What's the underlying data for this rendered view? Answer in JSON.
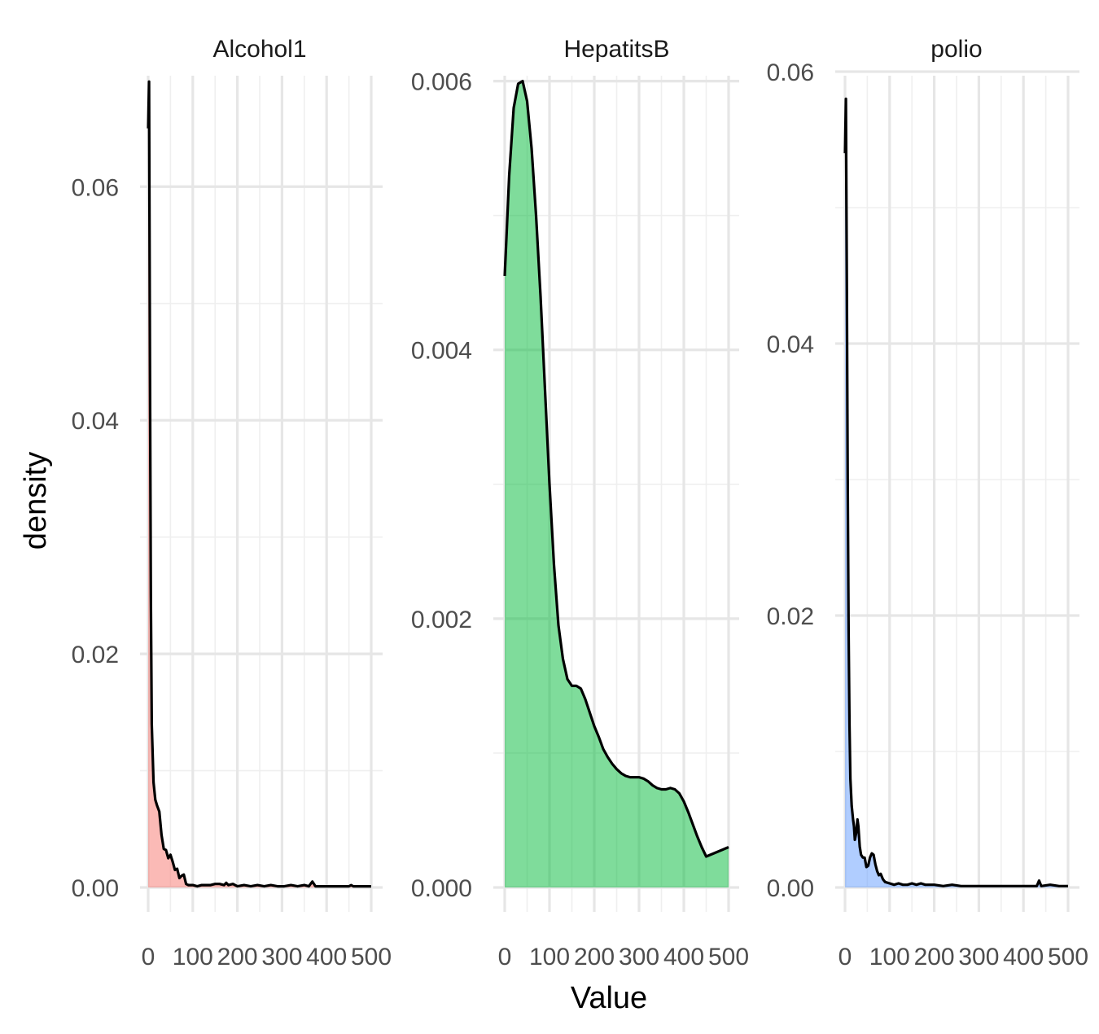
{
  "chart_data": {
    "type": "area",
    "xlabel": "Value",
    "ylabel": "density",
    "grid": true,
    "legend": "none",
    "panels": [
      {
        "name": "Alcohol1",
        "color": "#F8766D",
        "xlim": [
          0,
          500
        ],
        "ylim": [
          0,
          0.0695
        ],
        "x_ticks": [
          0,
          100,
          200,
          300,
          400,
          500
        ],
        "x_tick_labels": [
          "0",
          "100",
          "200",
          "300",
          "400",
          "500"
        ],
        "y_ticks": [
          0,
          0.02,
          0.04,
          0.06
        ],
        "y_tick_labels": [
          "0.00",
          "0.02",
          "0.04",
          "0.06"
        ],
        "points": [
          [
            0,
            0.065
          ],
          [
            2,
            0.069
          ],
          [
            4,
            0.045
          ],
          [
            6,
            0.025
          ],
          [
            8,
            0.014
          ],
          [
            12,
            0.009
          ],
          [
            16,
            0.0075
          ],
          [
            20,
            0.007
          ],
          [
            25,
            0.0065
          ],
          [
            30,
            0.0045
          ],
          [
            35,
            0.0033
          ],
          [
            40,
            0.0032
          ],
          [
            45,
            0.0025
          ],
          [
            50,
            0.0028
          ],
          [
            55,
            0.0022
          ],
          [
            60,
            0.0015
          ],
          [
            65,
            0.0016
          ],
          [
            70,
            0.0008
          ],
          [
            75,
            0.001
          ],
          [
            80,
            0.0011
          ],
          [
            85,
            0.0003
          ],
          [
            90,
            0.0002
          ],
          [
            100,
            0.0002
          ],
          [
            110,
            0.0001
          ],
          [
            120,
            0.0002
          ],
          [
            130,
            0.0002
          ],
          [
            140,
            0.0002
          ],
          [
            150,
            0.0003
          ],
          [
            160,
            0.0003
          ],
          [
            170,
            0.0002
          ],
          [
            175,
            0.0004
          ],
          [
            180,
            0.0002
          ],
          [
            190,
            0.0003
          ],
          [
            200,
            0.0001
          ],
          [
            215,
            0.0002
          ],
          [
            230,
            0.0001
          ],
          [
            245,
            0.0002
          ],
          [
            260,
            0.0001
          ],
          [
            275,
            0.0002
          ],
          [
            290,
            0.0001
          ],
          [
            305,
            0.0001
          ],
          [
            320,
            0.0002
          ],
          [
            335,
            0.0001
          ],
          [
            350,
            0.0002
          ],
          [
            360,
            0.0001
          ],
          [
            368,
            0.0005
          ],
          [
            375,
            0.0001
          ],
          [
            390,
            0.0001
          ],
          [
            410,
            0.0001
          ],
          [
            430,
            0.0001
          ],
          [
            450,
            0.0001
          ],
          [
            455,
            0.0002
          ],
          [
            460,
            0.0001
          ],
          [
            500,
            0.0001
          ]
        ]
      },
      {
        "name": "HepatitsB",
        "color": "#00BA38",
        "xlim": [
          0,
          500
        ],
        "ylim": [
          0,
          0.00604
        ],
        "x_ticks": [
          0,
          100,
          200,
          300,
          400,
          500
        ],
        "x_tick_labels": [
          "0",
          "100",
          "200",
          "300",
          "400",
          "500"
        ],
        "y_ticks": [
          0,
          0.002,
          0.004,
          0.006
        ],
        "y_tick_labels": [
          "0.000",
          "0.002",
          "0.004",
          "0.006"
        ],
        "points": [
          [
            0,
            0.00455
          ],
          [
            10,
            0.0053
          ],
          [
            20,
            0.0058
          ],
          [
            30,
            0.00598
          ],
          [
            40,
            0.006
          ],
          [
            50,
            0.00585
          ],
          [
            60,
            0.0055
          ],
          [
            70,
            0.005
          ],
          [
            80,
            0.0044
          ],
          [
            90,
            0.0037
          ],
          [
            100,
            0.003
          ],
          [
            110,
            0.0024
          ],
          [
            120,
            0.00195
          ],
          [
            130,
            0.0017
          ],
          [
            140,
            0.00155
          ],
          [
            150,
            0.0015
          ],
          [
            160,
            0.0015
          ],
          [
            170,
            0.00148
          ],
          [
            180,
            0.0014
          ],
          [
            190,
            0.0013
          ],
          [
            200,
            0.0012
          ],
          [
            210,
            0.00112
          ],
          [
            220,
            0.00103
          ],
          [
            230,
            0.00097
          ],
          [
            240,
            0.00092
          ],
          [
            250,
            0.00088
          ],
          [
            260,
            0.00085
          ],
          [
            270,
            0.00083
          ],
          [
            280,
            0.00082
          ],
          [
            290,
            0.00082
          ],
          [
            300,
            0.00082
          ],
          [
            310,
            0.00081
          ],
          [
            320,
            0.00079
          ],
          [
            330,
            0.00076
          ],
          [
            340,
            0.00074
          ],
          [
            350,
            0.00073
          ],
          [
            360,
            0.00073
          ],
          [
            370,
            0.00074
          ],
          [
            380,
            0.00073
          ],
          [
            390,
            0.0007
          ],
          [
            400,
            0.00064
          ],
          [
            410,
            0.00056
          ],
          [
            420,
            0.00047
          ],
          [
            430,
            0.00038
          ],
          [
            440,
            0.0003
          ],
          [
            450,
            0.00023
          ],
          [
            500,
            0.0003
          ]
        ]
      },
      {
        "name": "polio",
        "color": "#619CFF",
        "xlim": [
          0,
          500
        ],
        "ylim": [
          0,
          0.0597
        ],
        "x_ticks": [
          0,
          100,
          200,
          300,
          400,
          500
        ],
        "x_tick_labels": [
          "0",
          "100",
          "200",
          "300",
          "400",
          "500"
        ],
        "y_ticks": [
          0,
          0.02,
          0.04,
          0.06
        ],
        "y_tick_labels": [
          "0.00",
          "0.02",
          "0.04",
          "0.06"
        ],
        "points": [
          [
            0,
            0.054
          ],
          [
            2,
            0.058
          ],
          [
            4,
            0.045
          ],
          [
            6,
            0.03
          ],
          [
            8,
            0.019
          ],
          [
            10,
            0.012
          ],
          [
            12,
            0.008
          ],
          [
            15,
            0.006
          ],
          [
            18,
            0.005
          ],
          [
            20,
            0.0045
          ],
          [
            22,
            0.0035
          ],
          [
            25,
            0.004
          ],
          [
            28,
            0.005
          ],
          [
            30,
            0.0045
          ],
          [
            33,
            0.003
          ],
          [
            36,
            0.0024
          ],
          [
            40,
            0.0022
          ],
          [
            44,
            0.0022
          ],
          [
            48,
            0.0015
          ],
          [
            52,
            0.0016
          ],
          [
            56,
            0.0022
          ],
          [
            60,
            0.0025
          ],
          [
            64,
            0.0024
          ],
          [
            68,
            0.0017
          ],
          [
            72,
            0.0012
          ],
          [
            76,
            0.0009
          ],
          [
            80,
            0.001
          ],
          [
            85,
            0.0006
          ],
          [
            90,
            0.0004
          ],
          [
            100,
            0.0003
          ],
          [
            110,
            0.0002
          ],
          [
            120,
            0.0003
          ],
          [
            130,
            0.0002
          ],
          [
            140,
            0.0002
          ],
          [
            150,
            0.0003
          ],
          [
            160,
            0.0002
          ],
          [
            170,
            0.0003
          ],
          [
            180,
            0.0002
          ],
          [
            200,
            0.0002
          ],
          [
            220,
            0.0001
          ],
          [
            240,
            0.0002
          ],
          [
            260,
            0.0001
          ],
          [
            280,
            0.0001
          ],
          [
            300,
            0.0001
          ],
          [
            320,
            0.0001
          ],
          [
            340,
            0.0001
          ],
          [
            360,
            0.0001
          ],
          [
            380,
            0.0001
          ],
          [
            400,
            0.0001
          ],
          [
            420,
            0.0001
          ],
          [
            430,
            0.0001
          ],
          [
            435,
            0.0005
          ],
          [
            440,
            0.0001
          ],
          [
            460,
            0.0002
          ],
          [
            480,
            0.0001
          ],
          [
            500,
            0.0001
          ]
        ]
      }
    ]
  }
}
